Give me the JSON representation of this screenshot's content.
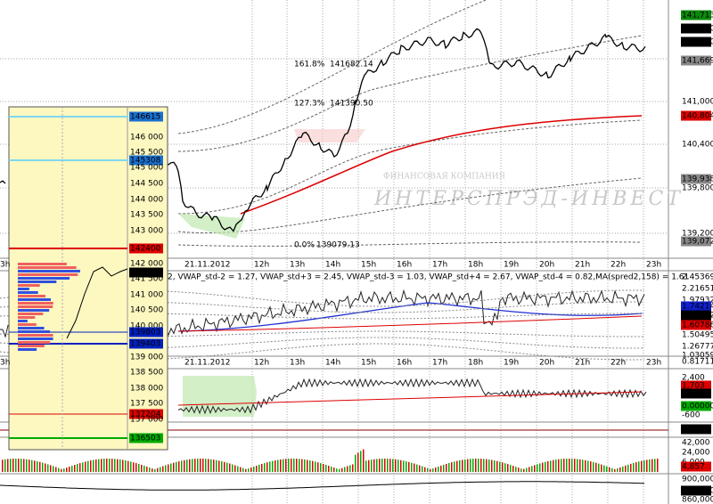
{
  "main_axis": {
    "labels": [
      "141,713",
      "141,700",
      "141,700",
      "141,669",
      "141,000",
      "140,804",
      "140,400",
      "139,938",
      "139,800",
      "139,200",
      "139,072"
    ]
  },
  "time_axis": {
    "left": "3h",
    "date": "21.11.2012",
    "hours": [
      "12h",
      "13h",
      "14h",
      "15h",
      "16h",
      "17h",
      "18h",
      "19h",
      "20h",
      "21h",
      "22h",
      "23h"
    ]
  },
  "fib_labels": [
    "161.8%",
    "141682.14",
    "127.3%",
    "141390.50",
    "0.0%",
    "139079.13"
  ],
  "watermark": {
    "top": "ФИНАНСОВАЯ КОМПАНИЯ",
    "name": "ИНТЕРСПРЭД-ИНВЕСТ"
  },
  "indicator": {
    "legend": "2, VWAP_std-2 = 1.27, VWAP_std+3 = 2.45, VWAP_std-3 = 1.03, VWAP_std+4 = 2.67, VWAP_std-4 = 0.82, ",
    "ma_legend": "MA(spred2,158) = 1.61",
    "axis": [
      "2.45369",
      "2.21651",
      "1.97932",
      "1.74214",
      "1.72642",
      "1.60786",
      "1.50495",
      "1.26777",
      "1.03059",
      "0.81711"
    ]
  },
  "spread_panel": {
    "axis": [
      "2,400",
      "1,703",
      "1,001",
      "0.00000",
      "-600"
    ]
  },
  "signal_panel": {
    "axis": [
      "10,921"
    ]
  },
  "volume_panel": {
    "axis": [
      "42,000",
      "24,000",
      "6,000",
      "4,857"
    ]
  },
  "oi_panel": {
    "axis": [
      "900,000",
      "874,430",
      "860,000"
    ]
  },
  "inset": {
    "axis": [
      "146615",
      "146 000",
      "145 500",
      "145308",
      "145 000",
      "144 500",
      "144 000",
      "143 500",
      "143 000",
      "142400",
      "142 000",
      "141709",
      "141 500",
      "141 000",
      "140 500",
      "140 000",
      "139803",
      "139403",
      "139 000",
      "138 500",
      "138 000",
      "137 500",
      "137204",
      "137 000",
      "136503"
    ]
  }
}
